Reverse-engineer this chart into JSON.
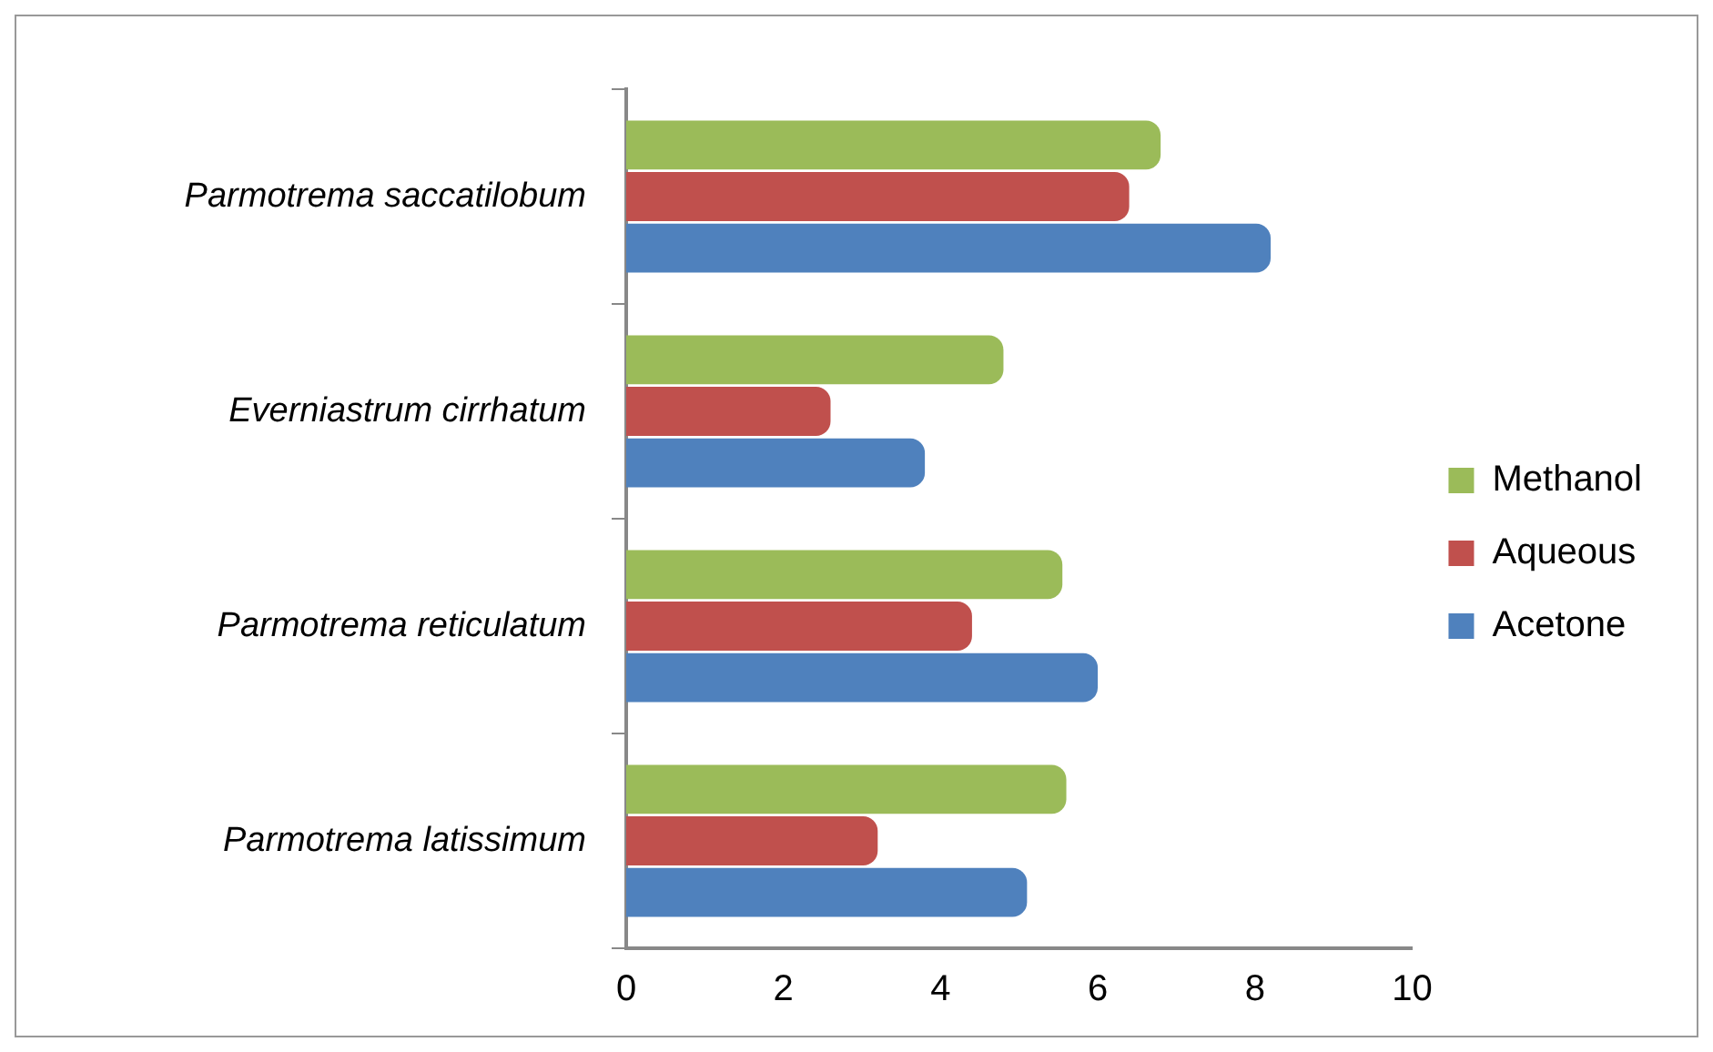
{
  "chart_data": {
    "type": "bar",
    "orientation": "horizontal",
    "categories": [
      "Parmotrema saccatilobum",
      "Everniastrum cirrhatum",
      "Parmotrema reticulatum",
      "Parmotrema latissimum"
    ],
    "series": [
      {
        "name": "Methanol",
        "color": "#9bbb59",
        "values": [
          6.8,
          4.8,
          5.55,
          5.6
        ]
      },
      {
        "name": "Aqueous",
        "color": "#c0504d",
        "values": [
          6.4,
          2.6,
          4.4,
          3.2
        ]
      },
      {
        "name": "Acetone",
        "color": "#4f81bd",
        "values": [
          8.2,
          3.8,
          6.0,
          5.1
        ]
      }
    ],
    "xlim": [
      0,
      10
    ],
    "xticks": [
      0,
      2,
      4,
      6,
      8,
      10
    ],
    "grid": false,
    "legend": "right"
  }
}
